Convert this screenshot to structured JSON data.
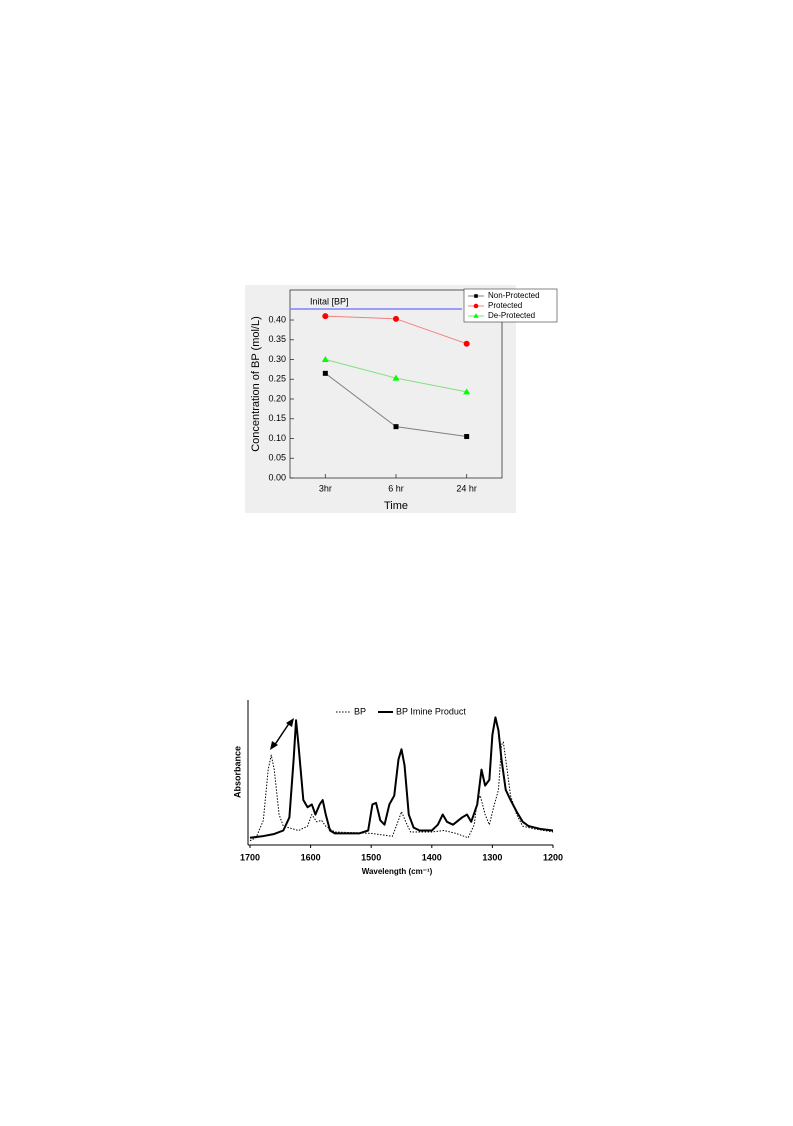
{
  "chart_data": [
    {
      "type": "line",
      "y_label": "Concentration of BP (mol/L)",
      "x_label": "Time",
      "categories": [
        "3hr",
        "6 hr",
        "24 hr"
      ],
      "series": [
        {
          "name": "Non-Protected",
          "color": "#000000",
          "line_color": "#808080",
          "marker": "square",
          "values": [
            0.265,
            0.13,
            0.105
          ]
        },
        {
          "name": "Protected",
          "color": "#ff0000",
          "line_color": "#f08080",
          "marker": "circle",
          "values": [
            0.41,
            0.403,
            0.34
          ]
        },
        {
          "name": "De-Protected",
          "color": "#00ff00",
          "line_color": "#80e080",
          "marker": "triangle",
          "values": [
            0.3,
            0.253,
            0.218
          ]
        }
      ],
      "reference_line": {
        "label": "Inital [BP]",
        "value": 0.428,
        "color": "#8080ff"
      },
      "ylim": [
        0,
        0.476
      ],
      "yticks": [
        {
          "value": 0,
          "label": "0.00"
        },
        {
          "value": 0.05,
          "label": "0.05"
        },
        {
          "value": 0.1,
          "label": "0.10"
        },
        {
          "value": 0.15,
          "label": "0.15"
        },
        {
          "value": 0.2,
          "label": "0.20"
        },
        {
          "value": 0.25,
          "label": "0.25"
        },
        {
          "value": 0.3,
          "label": "0.30"
        },
        {
          "value": 0.35,
          "label": "0.35"
        },
        {
          "value": 0.4,
          "label": "0.40"
        }
      ],
      "legend": "top-right"
    },
    {
      "type": "line",
      "y_label": "Absorbance",
      "x_label": "Wavelength (cm⁻¹)",
      "series": [
        {
          "name": "BP",
          "color": "#000000",
          "dash": true,
          "x": [
            1700,
            1690,
            1678,
            1670,
            1665,
            1660,
            1652,
            1645,
            1620,
            1605,
            1598,
            1590,
            1582,
            1575,
            1560,
            1500,
            1465,
            1455,
            1450,
            1443,
            1435,
            1400,
            1380,
            1360,
            1340,
            1330,
            1325,
            1320,
            1312,
            1305,
            1298,
            1290,
            1285,
            1282,
            1278,
            1270,
            1260,
            1250,
            1230,
            1200
          ],
          "values": [
            3,
            5,
            17,
            52,
            62,
            52,
            21,
            13,
            10,
            13,
            21,
            16,
            17,
            13,
            9,
            8,
            6,
            17,
            23,
            16,
            9,
            9,
            10,
            8,
            5,
            14,
            31,
            34,
            21,
            14,
            26,
            38,
            69,
            71,
            59,
            34,
            21,
            13,
            11,
            9
          ]
        },
        {
          "name": "BP Imine Product",
          "color": "#000000",
          "dash": false,
          "x": [
            1700,
            1680,
            1660,
            1645,
            1635,
            1628,
            1624,
            1620,
            1612,
            1605,
            1598,
            1592,
            1585,
            1580,
            1575,
            1568,
            1560,
            1540,
            1520,
            1505,
            1498,
            1492,
            1485,
            1478,
            1470,
            1462,
            1455,
            1450,
            1445,
            1438,
            1430,
            1420,
            1400,
            1390,
            1382,
            1375,
            1365,
            1350,
            1342,
            1335,
            1325,
            1318,
            1312,
            1305,
            1300,
            1295,
            1290,
            1285,
            1278,
            1270,
            1260,
            1250,
            1240,
            1220,
            1200
          ],
          "values": [
            5,
            6,
            7.6,
            10,
            19,
            59,
            86,
            69,
            31,
            26,
            28,
            21,
            28,
            31,
            21,
            10,
            8,
            8,
            8,
            10,
            28,
            29,
            17,
            14,
            28,
            34,
            59,
            66,
            55,
            21,
            12,
            10,
            10,
            14,
            21,
            16,
            14,
            19,
            21,
            16,
            28,
            52,
            41,
            45,
            76,
            88,
            79,
            59,
            38,
            31,
            23,
            16,
            13,
            11,
            10
          ]
        }
      ],
      "xlim": [
        1700,
        1200
      ],
      "ylim": [
        0,
        100
      ],
      "xticks": [
        1700,
        1600,
        1500,
        1400,
        1300,
        1200
      ],
      "legend": "top"
    }
  ]
}
